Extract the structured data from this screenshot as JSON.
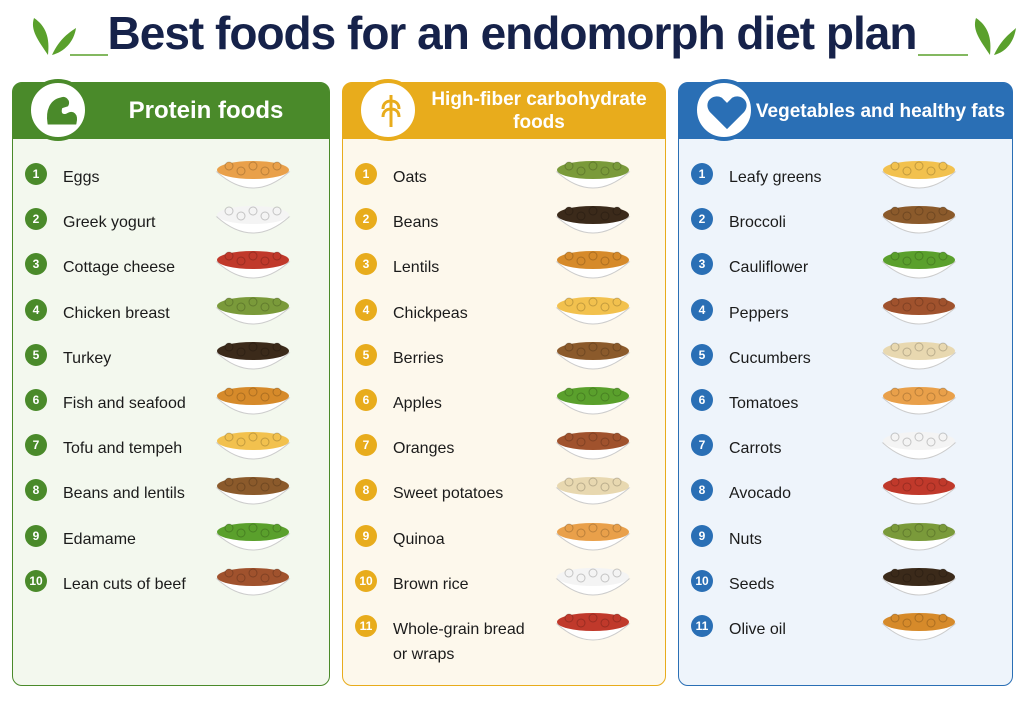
{
  "title": "Best foods for an endomorph diet plan",
  "panels": [
    {
      "heading": "Protein foods",
      "items": [
        {
          "number": 1,
          "label": "Eggs"
        },
        {
          "number": 2,
          "label": "Greek yogurt"
        },
        {
          "number": 3,
          "label": "Cottage cheese"
        },
        {
          "number": 4,
          "label": "Chicken breast"
        },
        {
          "number": 5,
          "label": "Turkey"
        },
        {
          "number": 6,
          "label": "Fish and seafood"
        },
        {
          "number": 7,
          "label": "Tofu and tempeh"
        },
        {
          "number": 8,
          "label": "Beans and lentils"
        },
        {
          "number": 9,
          "label": "Edamame"
        },
        {
          "number": 10,
          "label": "Lean cuts of beef"
        }
      ]
    },
    {
      "heading": "High-fiber carbohydrate foods",
      "items": [
        {
          "number": 1,
          "label": "Oats"
        },
        {
          "number": 2,
          "label": "Beans"
        },
        {
          "number": 3,
          "label": "Lentils"
        },
        {
          "number": 4,
          "label": "Chickpeas"
        },
        {
          "number": 5,
          "label": "Berries"
        },
        {
          "number": 6,
          "label": "Apples"
        },
        {
          "number": 7,
          "label": "Oranges"
        },
        {
          "number": 8,
          "label": "Sweet potatoes"
        },
        {
          "number": 9,
          "label": "Quinoa"
        },
        {
          "number": 10,
          "label": "Brown rice"
        },
        {
          "number": 11,
          "label": "Whole-grain bread or wraps"
        }
      ]
    },
    {
      "heading": "Vegetables and healthy fats",
      "items": [
        {
          "number": 1,
          "label": "Leafy greens"
        },
        {
          "number": 2,
          "label": "Broccoli"
        },
        {
          "number": 3,
          "label": "Cauliflower"
        },
        {
          "number": 4,
          "label": "Peppers"
        },
        {
          "number": 5,
          "label": "Cucumbers"
        },
        {
          "number": 6,
          "label": "Tomatoes"
        },
        {
          "number": 7,
          "label": "Carrots"
        },
        {
          "number": 8,
          "label": "Avocado"
        },
        {
          "number": 9,
          "label": "Nuts"
        },
        {
          "number": 10,
          "label": "Seeds"
        },
        {
          "number": 11,
          "label": "Olive oil"
        }
      ]
    }
  ]
}
